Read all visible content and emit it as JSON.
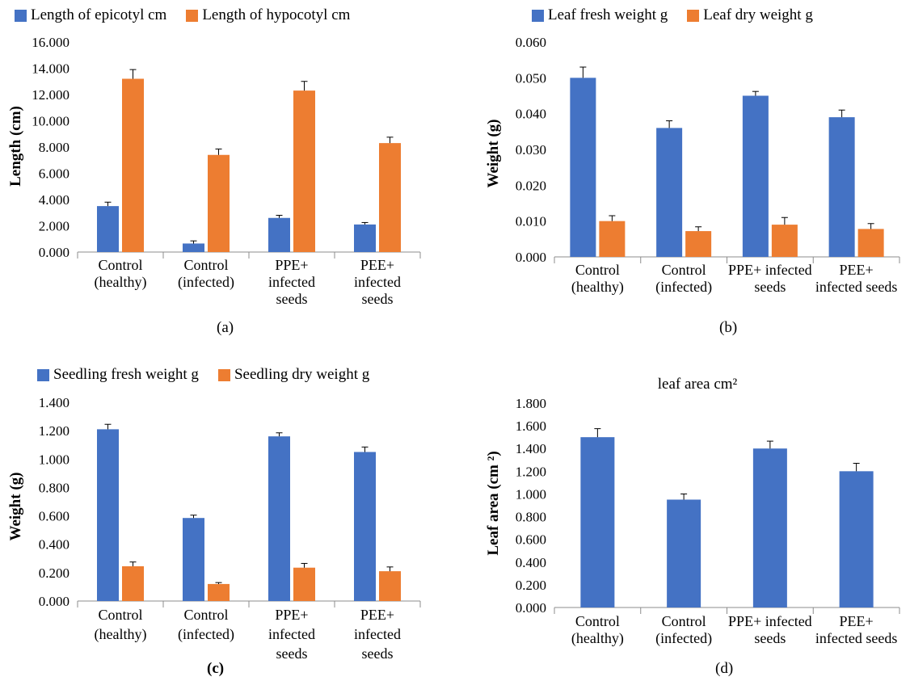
{
  "colors": {
    "blue": "#4472C4",
    "orange": "#ED7D31"
  },
  "chart_data": [
    {
      "type": "bar",
      "panel_label": "(a)",
      "title": "",
      "ylabel": "Length (cm)",
      "xlabel": "",
      "ylim": [
        0,
        16
      ],
      "yticks": [
        "0.000",
        "2.000",
        "4.000",
        "6.000",
        "8.000",
        "10.000",
        "12.000",
        "14.000",
        "16.000"
      ],
      "categories": [
        [
          "Control",
          "(healthy)"
        ],
        [
          "Control",
          "(infected)"
        ],
        [
          "PPE+",
          "infected",
          "seeds"
        ],
        [
          "PEE+",
          "infected",
          "seeds"
        ]
      ],
      "series": [
        {
          "name": "Length of epicotyl cm",
          "color": "#4472C4",
          "values": [
            3.5,
            0.65,
            2.6,
            2.1
          ],
          "errors": [
            0.3,
            0.2,
            0.2,
            0.15
          ]
        },
        {
          "name": "Length of hypocotyl cm",
          "color": "#ED7D31",
          "values": [
            13.2,
            7.4,
            12.3,
            8.3
          ],
          "errors": [
            0.7,
            0.45,
            0.7,
            0.45
          ]
        }
      ],
      "legend_position": "top",
      "grid": false
    },
    {
      "type": "bar",
      "panel_label": "(b)",
      "title": "",
      "ylabel": "Weight (g)",
      "xlabel": "",
      "ylim": [
        0,
        0.06
      ],
      "yticks": [
        "0.000",
        "0.010",
        "0.020",
        "0.030",
        "0.040",
        "0.050",
        "0.060"
      ],
      "categories": [
        [
          "Control",
          "(healthy)"
        ],
        [
          "Control",
          "(infected)"
        ],
        [
          "PPE+ infected",
          "seeds"
        ],
        [
          "PEE+",
          "infected seeds"
        ]
      ],
      "series": [
        {
          "name": "Leaf fresh weight g",
          "color": "#4472C4",
          "values": [
            0.05,
            0.036,
            0.045,
            0.039
          ],
          "errors": [
            0.003,
            0.002,
            0.0012,
            0.002
          ]
        },
        {
          "name": "Leaf dry weight g",
          "color": "#ED7D31",
          "values": [
            0.01,
            0.0072,
            0.009,
            0.0078
          ],
          "errors": [
            0.0015,
            0.0012,
            0.002,
            0.0015
          ]
        }
      ],
      "legend_position": "top",
      "grid": false
    },
    {
      "type": "bar",
      "panel_label": "(c)",
      "title": "",
      "ylabel": "Weight (g)",
      "xlabel": "",
      "ylim": [
        0,
        1.4
      ],
      "yticks": [
        "0.000",
        "0.200",
        "0.400",
        "0.600",
        "0.800",
        "1.000",
        "1.200",
        "1.400"
      ],
      "categories": [
        [
          "Control",
          "(healthy)"
        ],
        [
          "Control",
          "(infected)"
        ],
        [
          "PPE+",
          "infected",
          "seeds"
        ],
        [
          "PEE+",
          "infected",
          "seeds"
        ]
      ],
      "series": [
        {
          "name": "Seedling fresh weight g",
          "color": "#4472C4",
          "values": [
            1.21,
            0.585,
            1.16,
            1.05
          ],
          "errors": [
            0.035,
            0.02,
            0.025,
            0.035
          ]
        },
        {
          "name": "Seedling dry weight g",
          "color": "#ED7D31",
          "values": [
            0.245,
            0.12,
            0.235,
            0.21
          ],
          "errors": [
            0.03,
            0.01,
            0.03,
            0.03
          ]
        }
      ],
      "legend_position": "top",
      "grid": false
    },
    {
      "type": "bar",
      "panel_label": "(d)",
      "title": "leaf area cm²",
      "ylabel": "Leaf area (cm ²)",
      "xlabel": "",
      "ylim": [
        0,
        1.8
      ],
      "yticks": [
        "0.000",
        "0.200",
        "0.400",
        "0.600",
        "0.800",
        "1.000",
        "1.200",
        "1.400",
        "1.600",
        "1.800"
      ],
      "categories": [
        [
          "Control",
          "(healthy)"
        ],
        [
          "Control",
          "(infected)"
        ],
        [
          "PPE+ infected",
          "seeds"
        ],
        [
          "PEE+",
          "infected seeds"
        ]
      ],
      "series": [
        {
          "color": "#4472C4",
          "values": [
            1.5,
            0.95,
            1.4,
            1.2
          ],
          "errors": [
            0.075,
            0.05,
            0.065,
            0.07
          ]
        }
      ],
      "legend_position": "none",
      "grid": false
    }
  ]
}
